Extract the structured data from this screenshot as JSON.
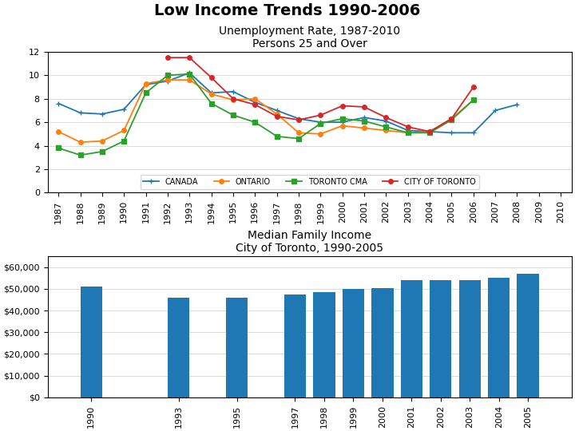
{
  "title": "Low Income Trends 1990-2006",
  "chart_data": [
    {
      "type": "line",
      "title": "Unemployment Rate, 1987-2010",
      "subtitle": "Persons 25 and Over",
      "x": [
        1987,
        1988,
        1989,
        1990,
        1991,
        1992,
        1993,
        1994,
        1995,
        1996,
        1997,
        1998,
        1999,
        2000,
        2001,
        2002,
        2003,
        2004,
        2005,
        2006,
        2007,
        2008,
        2009,
        2010
      ],
      "series": [
        {
          "name": "CANADA",
          "marker": "plus",
          "values": [
            7.6,
            6.8,
            6.7,
            7.1,
            9.2,
            9.5,
            10.2,
            8.5,
            8.6,
            7.7,
            7.0,
            6.3,
            6.0,
            6.0,
            6.4,
            6.1,
            5.3,
            5.2,
            5.1,
            5.1,
            7.0,
            7.5,
            null,
            null
          ]
        },
        {
          "name": "ONTARIO",
          "marker": "circle",
          "values": [
            5.2,
            4.3,
            4.4,
            5.3,
            9.3,
            9.6,
            9.6,
            8.4,
            7.9,
            8.0,
            6.7,
            5.1,
            5.0,
            5.7,
            5.5,
            5.3,
            5.1,
            5.2,
            6.3,
            7.9,
            null,
            null,
            null,
            null
          ]
        },
        {
          "name": "TORONTO CMA",
          "marker": "square",
          "values": [
            3.8,
            3.2,
            3.5,
            4.4,
            8.5,
            10.0,
            10.1,
            7.6,
            6.6,
            6.0,
            4.8,
            4.6,
            5.9,
            6.3,
            6.1,
            5.6,
            5.1,
            5.1,
            6.2,
            7.9,
            null,
            null,
            null,
            null
          ]
        },
        {
          "name": "CITY OF TORONTO",
          "marker": "circle",
          "values": [
            null,
            null,
            null,
            null,
            null,
            11.5,
            11.5,
            9.8,
            8.0,
            7.5,
            6.5,
            6.2,
            6.6,
            7.4,
            7.3,
            6.4,
            5.6,
            5.2,
            6.3,
            9.0,
            null,
            null,
            null,
            null
          ]
        }
      ],
      "xlim": [
        1986.5,
        2010.5
      ],
      "xticks": [
        1987,
        1988,
        1989,
        1990,
        1991,
        1992,
        1993,
        1994,
        1995,
        1996,
        1997,
        1998,
        1999,
        2000,
        2001,
        2002,
        2003,
        2004,
        2005,
        2006,
        2007,
        2008,
        2009,
        2010
      ],
      "ylim": [
        0,
        12
      ],
      "yticks": [
        0,
        2,
        4,
        6,
        8,
        10,
        12
      ],
      "grid": true,
      "legend": "lower center"
    },
    {
      "type": "bar",
      "title": "Median Family Income",
      "subtitle": "City of Toronto, 1990-2005",
      "x": [
        1990,
        1993,
        1995,
        1997,
        1998,
        1999,
        2000,
        2001,
        2002,
        2003,
        2004,
        2005
      ],
      "values": [
        51000,
        46000,
        46000,
        47500,
        48500,
        50000,
        50500,
        54000,
        54000,
        54000,
        55000,
        57000
      ],
      "xlim": [
        1988.5,
        2006.5
      ],
      "xticks": [
        1990,
        1993,
        1995,
        1997,
        1998,
        1999,
        2000,
        2001,
        2002,
        2003,
        2004,
        2005
      ],
      "ylim": [
        0,
        65000
      ],
      "yticks": [
        {
          "value": 0,
          "label": "$0"
        },
        {
          "value": 10000,
          "label": "$10,000"
        },
        {
          "value": 20000,
          "label": "$20,000"
        },
        {
          "value": 30000,
          "label": "$30,000"
        },
        {
          "value": 40000,
          "label": "$40,000"
        },
        {
          "value": 50000,
          "label": "$50,000"
        },
        {
          "value": 60000,
          "label": "$60,000"
        }
      ],
      "grid": true
    }
  ]
}
